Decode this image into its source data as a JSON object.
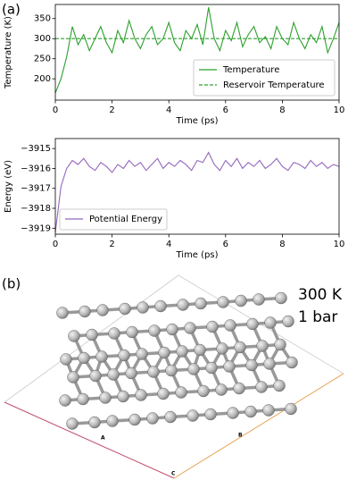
{
  "panel_labels": [
    "(a)",
    "(b)"
  ],
  "structure": {
    "conditions": [
      "300 K",
      "1 bar"
    ],
    "axis_labels": [
      "A",
      "B",
      "C"
    ]
  },
  "chart_data": [
    {
      "type": "line",
      "x_label": "Time (ps)",
      "y_label": "Temperature (K)",
      "x": [
        0,
        0.2,
        0.4,
        0.6,
        0.8,
        1.0,
        1.2,
        1.4,
        1.6,
        1.8,
        2.0,
        2.2,
        2.4,
        2.6,
        2.8,
        3.0,
        3.2,
        3.4,
        3.6,
        3.8,
        4.0,
        4.2,
        4.4,
        4.6,
        4.8,
        5.0,
        5.2,
        5.4,
        5.6,
        5.8,
        6.0,
        6.2,
        6.4,
        6.6,
        6.8,
        7.0,
        7.2,
        7.4,
        7.6,
        7.8,
        8.0,
        8.2,
        8.4,
        8.6,
        8.8,
        9.0,
        9.2,
        9.4,
        9.6,
        9.8,
        10.0
      ],
      "series": [
        {
          "name": "Temperature",
          "color": "#2ca02c",
          "linestyle": "solid",
          "values": [
            165,
            200,
            255,
            330,
            285,
            310,
            270,
            300,
            330,
            290,
            265,
            320,
            290,
            345,
            300,
            275,
            310,
            330,
            285,
            300,
            340,
            290,
            270,
            320,
            300,
            335,
            285,
            378,
            300,
            270,
            320,
            295,
            340,
            280,
            310,
            330,
            290,
            305,
            275,
            330,
            300,
            285,
            340,
            300,
            275,
            310,
            290,
            330,
            265,
            300,
            340
          ]
        },
        {
          "name": "Reservoir Temperature",
          "color": "#2ca02c",
          "linestyle": "dashed",
          "x": [
            0,
            10
          ],
          "values": [
            300,
            300
          ]
        }
      ],
      "xlim": [
        0,
        10
      ],
      "xticks": [
        0,
        2,
        4,
        6,
        8,
        10
      ],
      "ylim": [
        147,
        385
      ],
      "yticks": [
        200,
        250,
        300,
        350
      ],
      "legend": "lower right"
    },
    {
      "type": "line",
      "x_label": "Time (ps)",
      "y_label": "Energy (eV)",
      "x": [
        0,
        0.2,
        0.4,
        0.6,
        0.8,
        1.0,
        1.2,
        1.4,
        1.6,
        1.8,
        2.0,
        2.2,
        2.4,
        2.6,
        2.8,
        3.0,
        3.2,
        3.4,
        3.6,
        3.8,
        4.0,
        4.2,
        4.4,
        4.6,
        4.8,
        5.0,
        5.2,
        5.4,
        5.6,
        5.8,
        6.0,
        6.2,
        6.4,
        6.6,
        6.8,
        7.0,
        7.2,
        7.4,
        7.6,
        7.8,
        8.0,
        8.2,
        8.4,
        8.6,
        8.8,
        9.0,
        9.2,
        9.4,
        9.6,
        9.8,
        10.0
      ],
      "series": [
        {
          "name": "Potential Energy",
          "color": "#9467bd",
          "linestyle": "solid",
          "values": [
            -3919.2,
            -3916.9,
            -3916.0,
            -3915.6,
            -3915.8,
            -3915.5,
            -3915.9,
            -3916.1,
            -3915.7,
            -3915.9,
            -3916.2,
            -3915.8,
            -3916.0,
            -3915.6,
            -3915.9,
            -3915.7,
            -3916.1,
            -3915.8,
            -3915.5,
            -3916.0,
            -3915.7,
            -3915.9,
            -3915.6,
            -3915.8,
            -3916.1,
            -3915.6,
            -3915.7,
            -3915.2,
            -3915.8,
            -3916.1,
            -3915.6,
            -3915.9,
            -3915.5,
            -3916.0,
            -3915.7,
            -3915.9,
            -3915.6,
            -3916.0,
            -3915.8,
            -3915.5,
            -3915.9,
            -3916.1,
            -3915.7,
            -3915.8,
            -3916.0,
            -3915.6,
            -3915.9,
            -3915.7,
            -3916.0,
            -3915.8,
            -3915.9
          ]
        }
      ],
      "xlim": [
        0,
        10
      ],
      "xticks": [
        0,
        2,
        4,
        6,
        8,
        10
      ],
      "ylim": [
        -3919.3,
        -3914.5
      ],
      "yticks": [
        {
          "value": -3919,
          "label": "−3919"
        },
        {
          "value": -3918,
          "label": "−3918"
        },
        {
          "value": -3917,
          "label": "−3917"
        },
        {
          "value": -3916,
          "label": "−3916"
        },
        {
          "value": -3915,
          "label": "−3915"
        }
      ],
      "legend": "lower left"
    }
  ]
}
